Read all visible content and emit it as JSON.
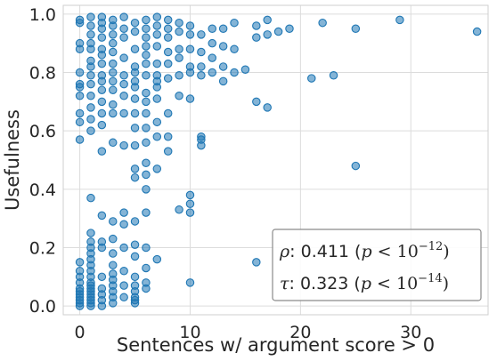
{
  "chart_data": {
    "type": "scatter",
    "title": "",
    "xlabel": "Sentences w/ argument score > 0",
    "ylabel": "Usefulness",
    "xlim": [
      -1.5,
      37
    ],
    "ylim": [
      -0.03,
      1.03
    ],
    "xticks": [
      0,
      10,
      20,
      30
    ],
    "yticks": [
      0.0,
      0.2,
      0.4,
      0.6,
      0.8,
      1.0
    ],
    "xtick_labels": [
      "0",
      "10",
      "20",
      "30"
    ],
    "ytick_labels": [
      "0.0",
      "0.2",
      "0.4",
      "0.6",
      "0.8",
      "1.0"
    ],
    "grid": true,
    "marker_color": "#1f77b4",
    "annotation": {
      "position": "bottom-right",
      "lines": [
        {
          "sym": "ρ",
          "value": ": 0.411 (",
          "p": "p",
          "lt": " < 10",
          "exp": "−12",
          "close": ")"
        },
        {
          "sym": "τ",
          "value": ": 0.323 (",
          "p": "p",
          "lt": " < 10",
          "exp": "−14",
          "close": ")"
        }
      ]
    },
    "points": [
      [
        0,
        0.98
      ],
      [
        0,
        0.97
      ],
      [
        0,
        0.9
      ],
      [
        0,
        0.88
      ],
      [
        0,
        0.8
      ],
      [
        0,
        0.76
      ],
      [
        0,
        0.75
      ],
      [
        0,
        0.72
      ],
      [
        0,
        0.66
      ],
      [
        0,
        0.63
      ],
      [
        0,
        0.57
      ],
      [
        0,
        0.15
      ],
      [
        0,
        0.12
      ],
      [
        0,
        0.1
      ],
      [
        0,
        0.08
      ],
      [
        0,
        0.06
      ],
      [
        0,
        0.05
      ],
      [
        0,
        0.04
      ],
      [
        0,
        0.03
      ],
      [
        0,
        0.02
      ],
      [
        0,
        0.01
      ],
      [
        0,
        0.0
      ],
      [
        1,
        0.99
      ],
      [
        1,
        0.96
      ],
      [
        1,
        0.93
      ],
      [
        1,
        0.9
      ],
      [
        1,
        0.88
      ],
      [
        1,
        0.84
      ],
      [
        1,
        0.82
      ],
      [
        1,
        0.79
      ],
      [
        1,
        0.76
      ],
      [
        1,
        0.72
      ],
      [
        1,
        0.68
      ],
      [
        1,
        0.64
      ],
      [
        1,
        0.6
      ],
      [
        1,
        0.37
      ],
      [
        1,
        0.25
      ],
      [
        1,
        0.22
      ],
      [
        1,
        0.2
      ],
      [
        1,
        0.18
      ],
      [
        1,
        0.16
      ],
      [
        1,
        0.14
      ],
      [
        1,
        0.12
      ],
      [
        1,
        0.1
      ],
      [
        1,
        0.08
      ],
      [
        1,
        0.07
      ],
      [
        1,
        0.06
      ],
      [
        1,
        0.05
      ],
      [
        1,
        0.04
      ],
      [
        1,
        0.03
      ],
      [
        1,
        0.02
      ],
      [
        1,
        0.01
      ],
      [
        1,
        0.0
      ],
      [
        2,
        0.99
      ],
      [
        2,
        0.97
      ],
      [
        2,
        0.95
      ],
      [
        2,
        0.92
      ],
      [
        2,
        0.88
      ],
      [
        2,
        0.86
      ],
      [
        2,
        0.83
      ],
      [
        2,
        0.79
      ],
      [
        2,
        0.77
      ],
      [
        2,
        0.74
      ],
      [
        2,
        0.7
      ],
      [
        2,
        0.66
      ],
      [
        2,
        0.62
      ],
      [
        2,
        0.53
      ],
      [
        2,
        0.31
      ],
      [
        2,
        0.22
      ],
      [
        2,
        0.2
      ],
      [
        2,
        0.1
      ],
      [
        2,
        0.06
      ],
      [
        2,
        0.04
      ],
      [
        2,
        0.02
      ],
      [
        2,
        0.0
      ],
      [
        3,
        0.98
      ],
      [
        3,
        0.96
      ],
      [
        3,
        0.93
      ],
      [
        3,
        0.9
      ],
      [
        3,
        0.87
      ],
      [
        3,
        0.83
      ],
      [
        3,
        0.8
      ],
      [
        3,
        0.77
      ],
      [
        3,
        0.74
      ],
      [
        3,
        0.69
      ],
      [
        3,
        0.66
      ],
      [
        3,
        0.56
      ],
      [
        3,
        0.29
      ],
      [
        3,
        0.23
      ],
      [
        3,
        0.18
      ],
      [
        3,
        0.14
      ],
      [
        3,
        0.11
      ],
      [
        3,
        0.09
      ],
      [
        3,
        0.07
      ],
      [
        3,
        0.05
      ],
      [
        3,
        0.03
      ],
      [
        3,
        0.01
      ],
      [
        4,
        0.99
      ],
      [
        4,
        0.95
      ],
      [
        4,
        0.92
      ],
      [
        4,
        0.85
      ],
      [
        4,
        0.79
      ],
      [
        4,
        0.76
      ],
      [
        4,
        0.72
      ],
      [
        4,
        0.66
      ],
      [
        4,
        0.55
      ],
      [
        4,
        0.32
      ],
      [
        4,
        0.28
      ],
      [
        4,
        0.2
      ],
      [
        4,
        0.12
      ],
      [
        4,
        0.07
      ],
      [
        4,
        0.03
      ],
      [
        5,
        0.97
      ],
      [
        5,
        0.94
      ],
      [
        5,
        0.88
      ],
      [
        5,
        0.82
      ],
      [
        5,
        0.8
      ],
      [
        5,
        0.77
      ],
      [
        5,
        0.75
      ],
      [
        5,
        0.71
      ],
      [
        5,
        0.66
      ],
      [
        5,
        0.61
      ],
      [
        5,
        0.55
      ],
      [
        5,
        0.47
      ],
      [
        5,
        0.44
      ],
      [
        5,
        0.29
      ],
      [
        5,
        0.21
      ],
      [
        5,
        0.17
      ],
      [
        5,
        0.1
      ],
      [
        5,
        0.07
      ],
      [
        5,
        0.05
      ],
      [
        5,
        0.03
      ],
      [
        5,
        0.02
      ],
      [
        5,
        0.01
      ],
      [
        6,
        0.98
      ],
      [
        6,
        0.95
      ],
      [
        6,
        0.92
      ],
      [
        6,
        0.89
      ],
      [
        6,
        0.86
      ],
      [
        6,
        0.83
      ],
      [
        6,
        0.79
      ],
      [
        6,
        0.73
      ],
      [
        6,
        0.7
      ],
      [
        6,
        0.66
      ],
      [
        6,
        0.61
      ],
      [
        6,
        0.56
      ],
      [
        6,
        0.49
      ],
      [
        6,
        0.45
      ],
      [
        6,
        0.4
      ],
      [
        6,
        0.32
      ],
      [
        6,
        0.2
      ],
      [
        6,
        0.13
      ],
      [
        6,
        0.08
      ],
      [
        6,
        0.06
      ],
      [
        7,
        0.99
      ],
      [
        7,
        0.96
      ],
      [
        7,
        0.93
      ],
      [
        7,
        0.89
      ],
      [
        7,
        0.83
      ],
      [
        7,
        0.79
      ],
      [
        7,
        0.77
      ],
      [
        7,
        0.75
      ],
      [
        7,
        0.71
      ],
      [
        7,
        0.63
      ],
      [
        7,
        0.58
      ],
      [
        7,
        0.47
      ],
      [
        7,
        0.16
      ],
      [
        8,
        0.98
      ],
      [
        8,
        0.95
      ],
      [
        8,
        0.92
      ],
      [
        8,
        0.87
      ],
      [
        8,
        0.83
      ],
      [
        8,
        0.78
      ],
      [
        8,
        0.66
      ],
      [
        8,
        0.58
      ],
      [
        8,
        0.53
      ],
      [
        9,
        0.97
      ],
      [
        9,
        0.94
      ],
      [
        9,
        0.88
      ],
      [
        9,
        0.85
      ],
      [
        9,
        0.79
      ],
      [
        9,
        0.72
      ],
      [
        9,
        0.33
      ],
      [
        10,
        0.96
      ],
      [
        10,
        0.93
      ],
      [
        10,
        0.88
      ],
      [
        10,
        0.82
      ],
      [
        10,
        0.8
      ],
      [
        10,
        0.71
      ],
      [
        10,
        0.38
      ],
      [
        10,
        0.35
      ],
      [
        10,
        0.32
      ],
      [
        10,
        0.08
      ],
      [
        11,
        0.93
      ],
      [
        11,
        0.87
      ],
      [
        11,
        0.82
      ],
      [
        11,
        0.79
      ],
      [
        11,
        0.58
      ],
      [
        11,
        0.57
      ],
      [
        11,
        0.55
      ],
      [
        12,
        0.95
      ],
      [
        12,
        0.9
      ],
      [
        12,
        0.85
      ],
      [
        12,
        0.8
      ],
      [
        13,
        0.95
      ],
      [
        13,
        0.89
      ],
      [
        13,
        0.82
      ],
      [
        13,
        0.77
      ],
      [
        14,
        0.97
      ],
      [
        14,
        0.88
      ],
      [
        14,
        0.8
      ],
      [
        15,
        0.81
      ],
      [
        16,
        0.96
      ],
      [
        16,
        0.92
      ],
      [
        16,
        0.7
      ],
      [
        16,
        0.15
      ],
      [
        17,
        0.98
      ],
      [
        17,
        0.93
      ],
      [
        17,
        0.68
      ],
      [
        18,
        0.94
      ],
      [
        19,
        0.95
      ],
      [
        21,
        0.78
      ],
      [
        22,
        0.97
      ],
      [
        23,
        0.79
      ],
      [
        25,
        0.95
      ],
      [
        25,
        0.48
      ],
      [
        29,
        0.98
      ],
      [
        36,
        0.94
      ]
    ]
  }
}
